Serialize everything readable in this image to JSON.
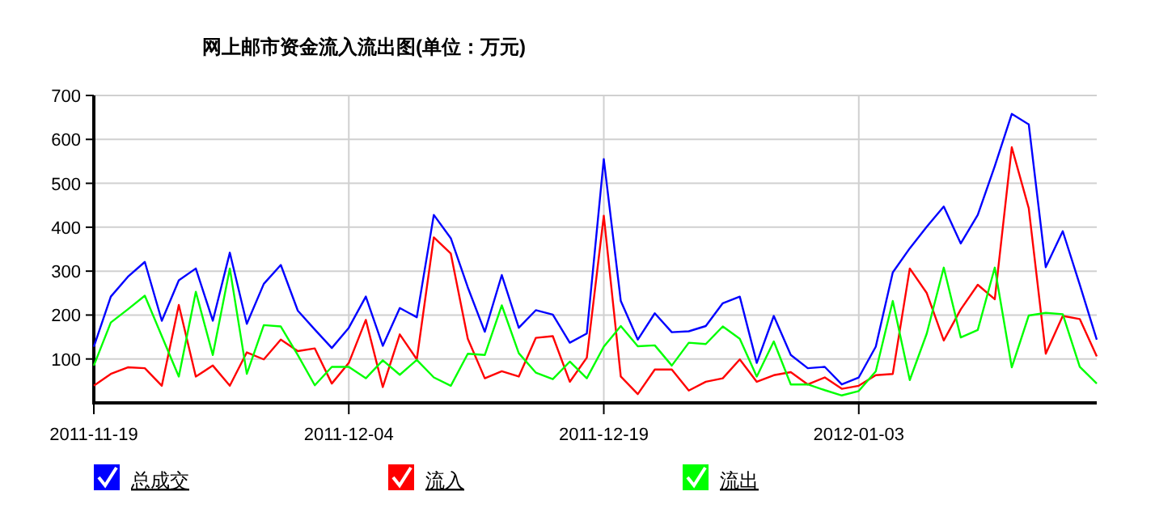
{
  "chart_data": {
    "type": "line",
    "title": "网上邮市资金流入流出图(单位：万元)",
    "x": [
      "2011-11-19",
      "2011-11-20",
      "2011-11-21",
      "2011-11-22",
      "2011-11-23",
      "2011-11-24",
      "2011-11-25",
      "2011-11-26",
      "2011-11-27",
      "2011-11-28",
      "2011-11-29",
      "2011-11-30",
      "2011-12-01",
      "2011-12-02",
      "2011-12-03",
      "2011-12-04",
      "2011-12-05",
      "2011-12-06",
      "2011-12-07",
      "2011-12-08",
      "2011-12-09",
      "2011-12-10",
      "2011-12-11",
      "2011-12-12",
      "2011-12-13",
      "2011-12-14",
      "2011-12-15",
      "2011-12-16",
      "2011-12-17",
      "2011-12-18",
      "2011-12-19",
      "2011-12-20",
      "2011-12-21",
      "2011-12-22",
      "2011-12-23",
      "2011-12-24",
      "2011-12-25",
      "2011-12-26",
      "2011-12-27",
      "2011-12-28",
      "2011-12-29",
      "2011-12-30",
      "2011-12-31",
      "2012-01-01",
      "2012-01-02",
      "2012-01-03",
      "2012-01-04",
      "2012-01-05",
      "2012-01-06",
      "2012-01-07",
      "2012-01-08",
      "2012-01-09",
      "2012-01-10",
      "2012-01-11",
      "2012-01-12",
      "2012-01-13",
      "2012-01-14",
      "2012-01-15",
      "2012-01-16",
      "2012-01-17"
    ],
    "series": [
      {
        "name": "总成交",
        "color": "#0000ff",
        "values": [
          128,
          242,
          287,
          321,
          187,
          279,
          306,
          187,
          342,
          180,
          271,
          314,
          210,
          167,
          125,
          171,
          242,
          130,
          216,
          195,
          428,
          375,
          263,
          162,
          291,
          171,
          211,
          201,
          137,
          158,
          555,
          232,
          144,
          204,
          161,
          163,
          175,
          227,
          242,
          91,
          198,
          109,
          79,
          82,
          42,
          58,
          128,
          297,
          352,
          401,
          447,
          363,
          428,
          539,
          658,
          634,
          309,
          391,
          269,
          144
        ]
      },
      {
        "name": "流入",
        "color": "#ff0000",
        "values": [
          39,
          66,
          81,
          79,
          39,
          223,
          60,
          85,
          39,
          115,
          99,
          144,
          118,
          124,
          44,
          91,
          189,
          36,
          156,
          99,
          377,
          340,
          146,
          56,
          72,
          60,
          148,
          152,
          48,
          103,
          426,
          60,
          20,
          76,
          76,
          28,
          48,
          56,
          99,
          48,
          63,
          70,
          42,
          58,
          32,
          39,
          63,
          66,
          306,
          250,
          142,
          213,
          269,
          236,
          582,
          443,
          112,
          198,
          191,
          106
        ]
      },
      {
        "name": "流出",
        "color": "#00ff00",
        "values": [
          85,
          183,
          213,
          244,
          152,
          60,
          253,
          109,
          306,
          66,
          177,
          174,
          109,
          40,
          82,
          82,
          56,
          97,
          64,
          98,
          58,
          39,
          112,
          109,
          222,
          113,
          69,
          54,
          94,
          56,
          128,
          175,
          129,
          131,
          85,
          137,
          134,
          174,
          146,
          60,
          140,
          42,
          42,
          29,
          17,
          27,
          72,
          232,
          52,
          158,
          308,
          149,
          166,
          308,
          81,
          199,
          205,
          202,
          82,
          44
        ]
      }
    ],
    "xlim": [
      "2011-11-19",
      "2012-01-17"
    ],
    "xticks": [
      "2011-11-19",
      "2011-12-04",
      "2011-12-19",
      "2012-01-03"
    ],
    "ylim": [
      0,
      700
    ],
    "yticks": [
      100,
      200,
      300,
      400,
      500,
      600,
      700
    ],
    "grid": true,
    "legend": "bottom",
    "marker": "none",
    "line_style": "solid"
  }
}
